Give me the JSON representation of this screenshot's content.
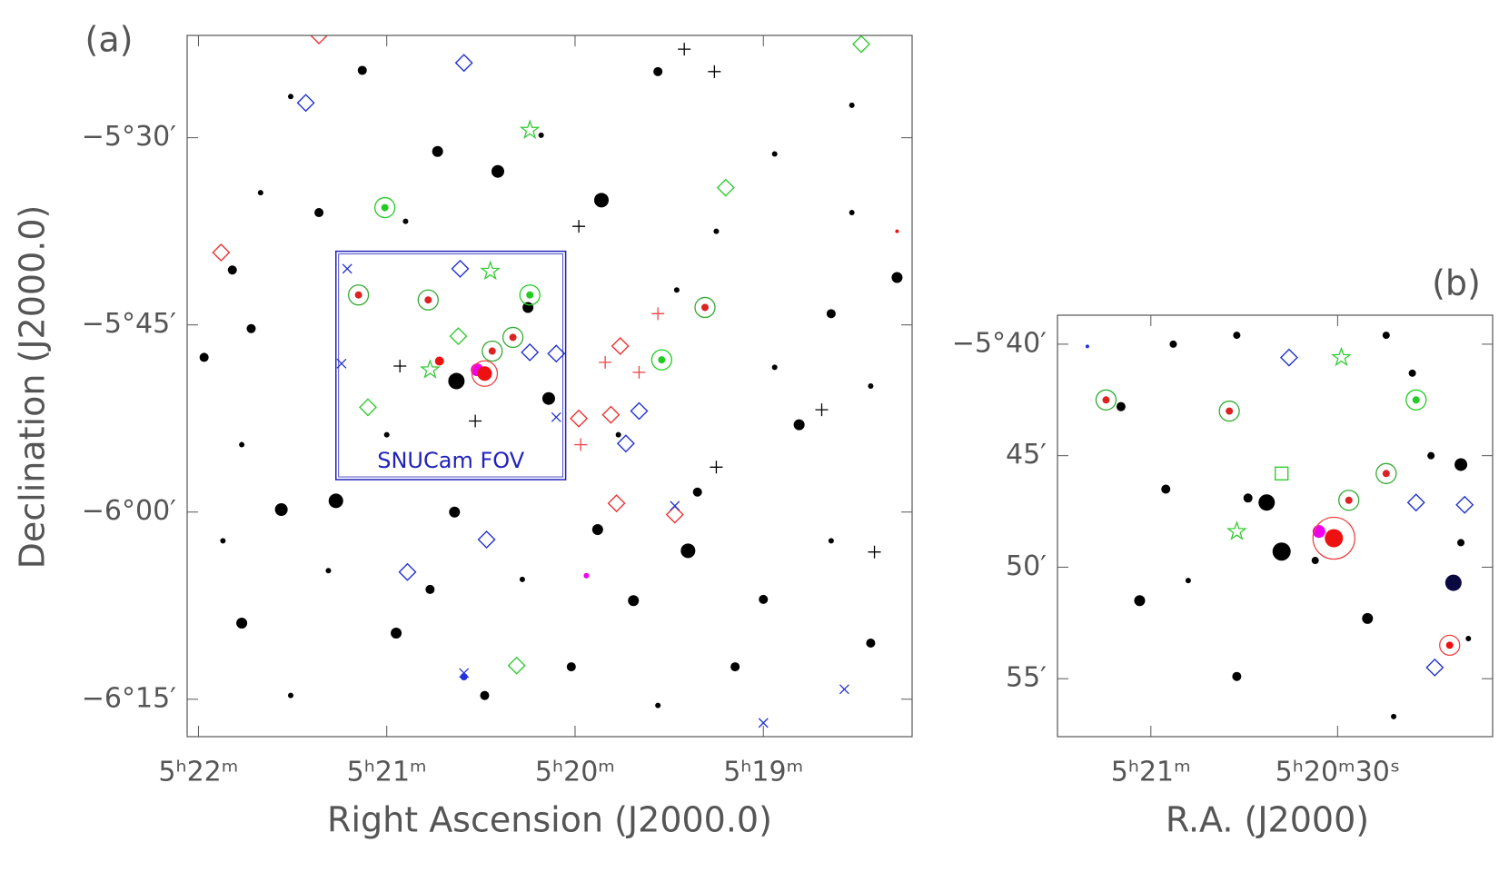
{
  "chart_data": [
    {
      "type": "scatter",
      "panel_label": "(a)",
      "xlabel": "Right Ascension (J2000.0)",
      "ylabel": "Declination (J2000.0)",
      "xlim": [
        22.06,
        18.21
      ],
      "ylim": [
        -378.0,
        -321.8
      ],
      "xticks": [
        {
          "value": 22,
          "label": "5ʰ22ᵐ"
        },
        {
          "value": 21,
          "label": "5ʰ21ᵐ"
        },
        {
          "value": 20,
          "label": "5ʰ20ᵐ"
        },
        {
          "value": 19,
          "label": "5ʰ19ᵐ"
        }
      ],
      "yticks": [
        {
          "value": -330,
          "label": "−5°30′"
        },
        {
          "value": -345,
          "label": "−5°45′"
        },
        {
          "value": -360,
          "label": "−6°00′"
        },
        {
          "value": -375,
          "label": "−6°15′"
        }
      ],
      "fov": {
        "label": "SNUCam FOV",
        "color": "#2222bb",
        "ra": [
          21.27,
          20.05
        ],
        "dec": [
          -357.4,
          -339.1
        ]
      },
      "series": [
        {
          "marker": "dot",
          "color": "#000000",
          "x": [
            20.41,
            19.86,
            20.73,
            21.27,
            20.63,
            20.14,
            19.4,
            20.95,
            21.77,
            21.56,
            18.81,
            20.25,
            19.88,
            19.56,
            21.13,
            21.82,
            18.29,
            18.43,
            19.69,
            20.64,
            21.36,
            21.72,
            19.35,
            19.0,
            20.02,
            20.48,
            21.97,
            18.64,
            20.77,
            19.15,
            21.51,
            20.18,
            18.94,
            18.53,
            20.9,
            19.46,
            18.43,
            18.94,
            21.77,
            21.87,
            21.31,
            20.28,
            18.64,
            19.56,
            21.51,
            18.53,
            19.25,
            19.77,
            21.67,
            21.0
          ],
          "y": [
            -332.7,
            -335.0,
            -331.1,
            -359.1,
            -349.5,
            -350.9,
            -363.1,
            -369.7,
            -368.9,
            -359.8,
            -353.0,
            -343.6,
            -361.4,
            -324.7,
            -324.6,
            -340.6,
            -341.2,
            -370.5,
            -367.1,
            -360.0,
            -336.0,
            -345.3,
            -358.4,
            -367.0,
            -372.4,
            -374.7,
            -347.6,
            -344.1,
            -366.2,
            -372.4,
            -326.7,
            -329.8,
            -331.3,
            -336.0,
            -336.7,
            -342.2,
            -349.9,
            -348.4,
            -354.6,
            -362.3,
            -364.7,
            -365.4,
            -362.3,
            -375.5,
            -374.7,
            -327.4,
            -337.5,
            -353.8,
            -334.4,
            -353.8
          ],
          "sizes": [
            7,
            8,
            6,
            8,
            9,
            7,
            8,
            6,
            6,
            7,
            6,
            6,
            6,
            5,
            5,
            5,
            6,
            5,
            6,
            6,
            5,
            5,
            5,
            5,
            5,
            5,
            5,
            5,
            5,
            5,
            3,
            3,
            3,
            3,
            3,
            3,
            3,
            3,
            3,
            3,
            3,
            3,
            3,
            3,
            3,
            3,
            3,
            3,
            3,
            3
          ]
        },
        {
          "marker": "ringdot",
          "color": "#22cc22",
          "ring": "#22cc22",
          "x": [
            21.01,
            20.24,
            19.54
          ],
          "y": [
            -335.6,
            -342.6,
            -347.8
          ]
        },
        {
          "marker": "diamond",
          "color": "#33cc33",
          "x": [
            18.48,
            19.2,
            20.62,
            21.1,
            20.31
          ],
          "y": [
            -322.5,
            -334.0,
            -345.9,
            -351.6,
            -372.3
          ]
        },
        {
          "marker": "star",
          "color": "#33cc33",
          "x": [
            20.24,
            20.45,
            20.77
          ],
          "y": [
            -329.4,
            -340.7,
            -348.6
          ]
        },
        {
          "marker": "ringdot",
          "color": "#dd2222",
          "ring": "#33aa33",
          "x": [
            21.15,
            20.78,
            20.33,
            19.31,
            20.44
          ],
          "y": [
            -342.6,
            -343.0,
            -346.0,
            -343.6,
            -347.1
          ]
        },
        {
          "marker": "diamond",
          "color": "#ee3333",
          "x": [
            21.36,
            21.88,
            19.76,
            19.98,
            19.81,
            19.47,
            19.78
          ],
          "y": [
            -321.8,
            -339.2,
            -346.7,
            -352.5,
            -352.2,
            -360.2,
            -359.3
          ]
        },
        {
          "marker": "diamond",
          "color": "#2233cc",
          "x": [
            20.59,
            21.43,
            20.61,
            20.24,
            20.1,
            19.73,
            20.47,
            20.89,
            19.66
          ],
          "y": [
            -324.0,
            -327.2,
            -340.5,
            -347.2,
            -347.3,
            -354.5,
            -362.2,
            -364.8,
            -351.9
          ]
        },
        {
          "marker": "plus",
          "color": "#ee4444",
          "x": [
            19.56,
            19.66,
            19.84,
            19.97
          ],
          "y": [
            -344.1,
            -348.8,
            -348.0,
            -354.6
          ]
        },
        {
          "marker": "cross",
          "color": "#2233cc",
          "x": [
            21.21,
            21.24,
            20.1,
            19.47,
            20.59,
            18.57,
            19.0
          ],
          "y": [
            -340.5,
            -348.1,
            -352.4,
            -359.5,
            -372.9,
            -374.2,
            -376.9
          ]
        },
        {
          "marker": "plus",
          "color": "#000000",
          "x": [
            19.42,
            19.26,
            19.98,
            20.93,
            20.53,
            18.69,
            19.25,
            18.41
          ],
          "y": [
            -322.9,
            -324.7,
            -337.1,
            -348.3,
            -352.7,
            -351.8,
            -356.4,
            -363.2
          ]
        },
        {
          "marker": "dot",
          "color": "#ee00ee",
          "x": [
            20.52,
            19.94
          ],
          "y": [
            -348.6,
            -365.1
          ],
          "sizes": [
            7,
            3
          ]
        },
        {
          "marker": "ringdot",
          "color": "#ee1111",
          "ring": "#ee4444",
          "x": [
            20.48
          ],
          "y": [
            -348.9
          ]
        },
        {
          "marker": "dot",
          "color": "#ee1111",
          "x": [
            20.72,
            18.29
          ],
          "y": [
            -347.9,
            -337.5
          ],
          "sizes": [
            5,
            2
          ]
        },
        {
          "marker": "dot",
          "color": "#2233dd",
          "x": [
            20.59
          ],
          "y": [
            -373.2
          ],
          "sizes": [
            4
          ]
        }
      ]
    },
    {
      "type": "scatter",
      "panel_label": "(b)",
      "xlabel": "R.A. (J2000)",
      "xlim": [
        21.25,
        20.085
      ],
      "ylim": [
        -357.6,
        -338.7
      ],
      "xticks": [
        {
          "value": 21,
          "label": "5ʰ21ᵐ"
        },
        {
          "value": 20.5,
          "label": "5ʰ20ᵐ30ˢ"
        }
      ],
      "yticks": [
        {
          "value": -340,
          "label": "−5°40′"
        },
        {
          "value": -345,
          "label": "45′"
        },
        {
          "value": -350,
          "label": "50′"
        },
        {
          "value": -355,
          "label": "55′"
        }
      ],
      "series": [
        {
          "marker": "dot",
          "color": "#000000",
          "x": [
            20.69,
            20.65,
            21.03,
            20.42,
            20.17,
            20.74,
            20.96,
            20.25,
            20.3,
            20.94,
            20.77,
            21.08,
            20.37,
            20.56,
            20.77,
            20.17,
            20.35,
            20.9,
            20.15
          ],
          "y": [
            -347.1,
            -349.3,
            -351.5,
            -352.3,
            -345.4,
            -346.9,
            -346.5,
            -345.0,
            -341.3,
            -340.0,
            -339.6,
            -342.8,
            -339.6,
            -349.7,
            -354.9,
            -348.9,
            -356.7,
            -350.6,
            -353.2
          ],
          "sizes": [
            9,
            10,
            6,
            6,
            7,
            5,
            5,
            4,
            4,
            4,
            4,
            5,
            4,
            4,
            5,
            4,
            3,
            3,
            3
          ]
        },
        {
          "marker": "dot",
          "color": "#0a0a40",
          "x": [
            20.19
          ],
          "y": [
            -350.7
          ],
          "sizes": [
            9
          ]
        },
        {
          "marker": "ringdot",
          "color": "#22cc22",
          "ring": "#22cc22",
          "x": [
            20.29
          ],
          "y": [
            -342.5
          ]
        },
        {
          "marker": "star",
          "color": "#33cc33",
          "x": [
            20.49,
            20.77
          ],
          "y": [
            -340.6,
            -348.4
          ]
        },
        {
          "marker": "square",
          "color": "#33cc33",
          "x": [
            20.65
          ],
          "y": [
            -345.8
          ]
        },
        {
          "marker": "ringdot",
          "color": "#dd2222",
          "ring": "#33aa33",
          "x": [
            21.12,
            20.79,
            20.47,
            20.37
          ],
          "y": [
            -342.5,
            -343.0,
            -347.0,
            -345.8
          ]
        },
        {
          "marker": "diamond",
          "color": "#2233cc",
          "x": [
            20.63,
            20.29,
            20.16,
            20.24
          ],
          "y": [
            -340.6,
            -347.1,
            -347.2,
            -354.5
          ]
        },
        {
          "marker": "dot",
          "color": "#ee00ee",
          "x": [
            20.55
          ],
          "y": [
            -348.4
          ],
          "sizes": [
            7
          ]
        },
        {
          "marker": "ringdot",
          "color": "#ee1111",
          "ring": "#ee4444",
          "x": [
            20.51,
            20.2
          ],
          "y": [
            -348.7,
            -353.5
          ]
        },
        {
          "marker": "dot",
          "color": "#2233dd",
          "x": [
            21.17
          ],
          "y": [
            -340.1
          ],
          "sizes": [
            2
          ]
        }
      ]
    }
  ]
}
